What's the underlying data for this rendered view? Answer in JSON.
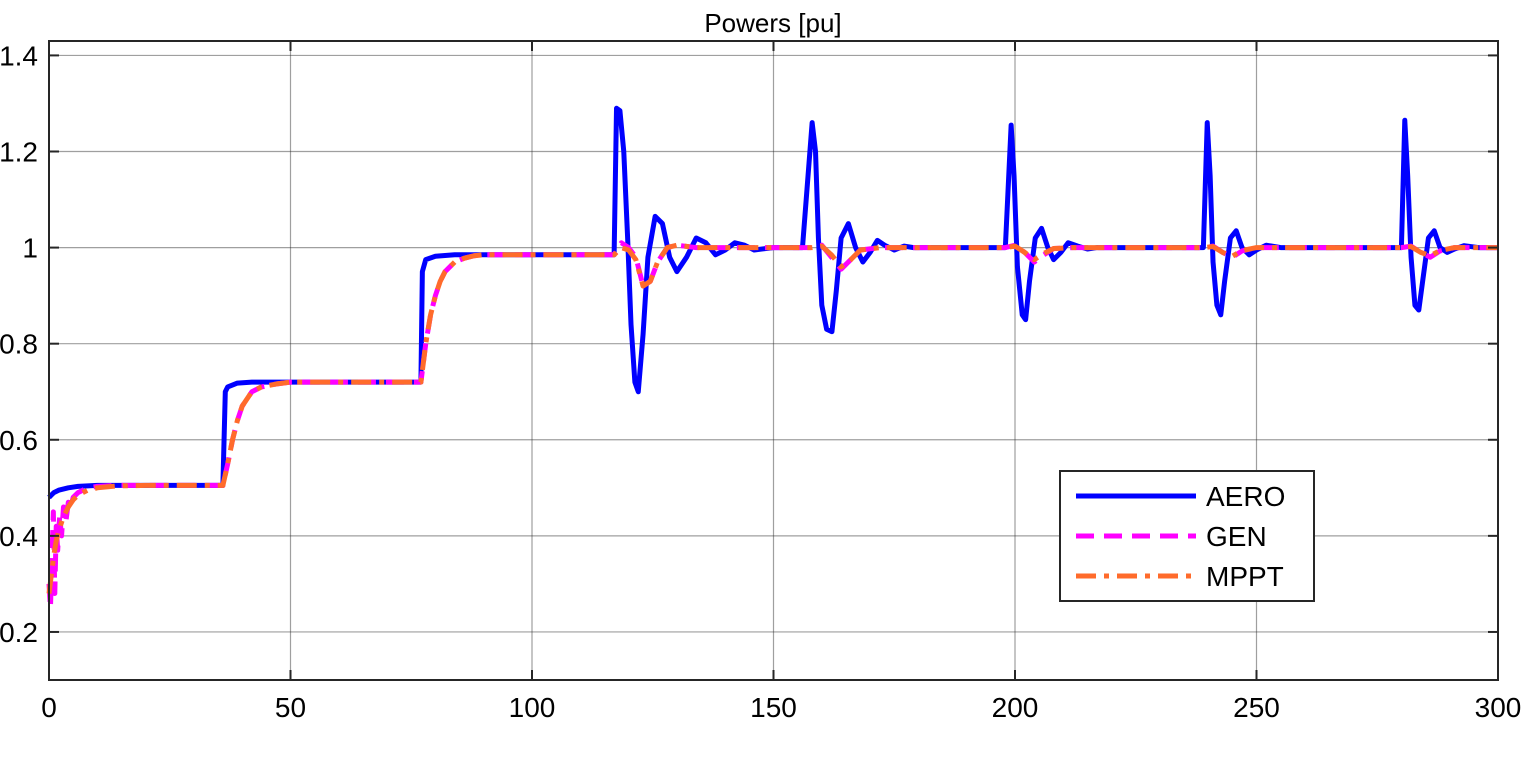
{
  "chart_data": {
    "type": "line",
    "title": "Powers [pu]",
    "xlabel": "",
    "ylabel": "",
    "xlim": [
      0,
      300
    ],
    "ylim": [
      0.1,
      1.43
    ],
    "xticks": [
      0,
      50,
      100,
      150,
      200,
      250,
      300
    ],
    "xtick_labels": [
      "0",
      "50",
      "100",
      "150",
      "200",
      "250",
      "300"
    ],
    "yticks": [
      0.2,
      0.4,
      0.6,
      0.8,
      1.0,
      1.2,
      1.4
    ],
    "ytick_labels": [
      "0.2",
      "0.4",
      "0.6",
      "0.8",
      "1",
      "1.2",
      "1.4"
    ],
    "grid": true,
    "legend_position": "bottom-right",
    "series": [
      {
        "name": "AERO",
        "color": "#0000ff",
        "style": "solid",
        "x": [
          0,
          0.5,
          1,
          2,
          4,
          6,
          10,
          20,
          36,
          36.5,
          37,
          39,
          42,
          50,
          60,
          77,
          77.3,
          78,
          80,
          84,
          90,
          100,
          117,
          117.5,
          118.2,
          119,
          119.8,
          120.5,
          121.3,
          122,
          123,
          124,
          125.5,
          127,
          128.5,
          130,
          132,
          134,
          136,
          138,
          140,
          142,
          144,
          146,
          150,
          156,
          158,
          158.7,
          159.3,
          160,
          161,
          162.1,
          163,
          164,
          165.5,
          167,
          168.5,
          170,
          171.5,
          173,
          175,
          177,
          179,
          185,
          198,
          199.2,
          199.8,
          200.5,
          201.5,
          202.2,
          203,
          204.2,
          205.5,
          206.8,
          208,
          209.5,
          211,
          213,
          215,
          217,
          220,
          230,
          239,
          239.8,
          240.4,
          241,
          241.8,
          242.6,
          243.4,
          244.6,
          245.8,
          247,
          248.5,
          250,
          252,
          255,
          270,
          280,
          280.7,
          281.3,
          282,
          282.8,
          283.6,
          284.4,
          285.6,
          286.8,
          288,
          289.5,
          291,
          293,
          296,
          300
        ],
        "values": [
          0.48,
          0.485,
          0.49,
          0.495,
          0.5,
          0.503,
          0.505,
          0.505,
          0.505,
          0.7,
          0.71,
          0.718,
          0.72,
          0.72,
          0.72,
          0.72,
          0.95,
          0.975,
          0.982,
          0.985,
          0.985,
          0.985,
          0.985,
          1.29,
          1.285,
          1.2,
          1.02,
          0.84,
          0.72,
          0.7,
          0.82,
          0.98,
          1.065,
          1.05,
          0.98,
          0.95,
          0.98,
          1.02,
          1.01,
          0.985,
          0.995,
          1.01,
          1.005,
          0.995,
          1.0,
          1.0,
          1.26,
          1.2,
          1.02,
          0.88,
          0.83,
          0.825,
          0.91,
          1.02,
          1.05,
          1.0,
          0.97,
          0.99,
          1.015,
          1.005,
          0.995,
          1.003,
          1.0,
          1.0,
          1.0,
          1.255,
          1.15,
          0.96,
          0.86,
          0.85,
          0.93,
          1.02,
          1.04,
          1.0,
          0.975,
          0.99,
          1.01,
          1.003,
          0.997,
          1.0,
          1.0,
          1.0,
          1.0,
          1.26,
          1.15,
          0.97,
          0.88,
          0.86,
          0.93,
          1.02,
          1.035,
          1.0,
          0.985,
          0.995,
          1.005,
          1.0,
          1.0,
          1.0,
          1.265,
          1.15,
          0.98,
          0.88,
          0.87,
          0.93,
          1.02,
          1.035,
          1.0,
          0.99,
          0.997,
          1.004,
          1.0,
          1.0
        ]
      },
      {
        "name": "GEN",
        "color": "#ff00ff",
        "style": "dashed",
        "x": [
          0,
          0.3,
          0.6,
          0.9,
          1.2,
          1.5,
          1.8,
          2.2,
          2.6,
          3,
          3.5,
          4,
          4.5,
          5,
          6,
          7,
          8,
          10,
          14,
          20,
          36,
          37,
          38,
          39,
          40,
          42,
          44,
          47,
          50,
          55,
          60,
          77,
          78,
          79,
          80,
          81,
          82,
          84,
          86,
          88,
          90,
          100,
          117,
          118.5,
          120,
          121.5,
          123,
          124.5,
          126,
          128,
          130,
          134,
          140,
          150,
          158,
          160,
          162,
          164,
          166,
          168,
          172,
          180,
          198,
          200,
          202,
          204,
          206,
          208,
          212,
          220,
          239,
          241,
          243,
          245,
          247,
          250,
          260,
          280,
          282,
          284,
          286,
          288,
          291,
          300
        ],
        "values": [
          0.3,
          0.25,
          0.35,
          0.45,
          0.28,
          0.42,
          0.37,
          0.44,
          0.4,
          0.46,
          0.43,
          0.47,
          0.46,
          0.48,
          0.49,
          0.495,
          0.5,
          0.503,
          0.505,
          0.505,
          0.505,
          0.55,
          0.6,
          0.64,
          0.67,
          0.7,
          0.71,
          0.716,
          0.72,
          0.72,
          0.72,
          0.72,
          0.8,
          0.86,
          0.9,
          0.93,
          0.95,
          0.97,
          0.978,
          0.983,
          0.985,
          0.985,
          0.985,
          1.01,
          1.0,
          0.98,
          0.92,
          0.93,
          0.97,
          1.0,
          1.005,
          1.0,
          1.0,
          1.0,
          1.0,
          1.005,
          0.98,
          0.955,
          0.975,
          0.995,
          1.0,
          1.0,
          1.0,
          1.005,
          0.99,
          0.97,
          0.985,
          0.998,
          1.0,
          1.0,
          1.0,
          1.003,
          0.99,
          0.98,
          0.993,
          1.0,
          1.0,
          1.0,
          1.003,
          0.99,
          0.98,
          0.993,
          1.0,
          1.0
        ]
      },
      {
        "name": "MPPT",
        "color": "#ff6b2b",
        "style": "dashdot",
        "x": [
          0,
          0.5,
          1,
          1.5,
          2,
          3,
          4,
          5,
          6,
          8,
          10,
          14,
          20,
          36,
          37,
          38,
          39,
          40,
          42,
          44,
          47,
          50,
          55,
          60,
          77,
          78,
          79,
          80,
          81,
          82,
          84,
          86,
          88,
          90,
          100,
          117,
          118.5,
          120,
          121.5,
          123,
          124.5,
          126,
          128,
          130,
          134,
          140,
          150,
          158,
          160,
          162,
          164,
          166,
          168,
          172,
          180,
          198,
          200,
          202,
          204,
          206,
          208,
          212,
          220,
          239,
          241,
          243,
          245,
          247,
          250,
          260,
          280,
          282,
          284,
          286,
          288,
          291,
          300
        ],
        "values": [
          0.28,
          0.32,
          0.36,
          0.39,
          0.41,
          0.44,
          0.46,
          0.475,
          0.485,
          0.495,
          0.5,
          0.504,
          0.505,
          0.505,
          0.55,
          0.6,
          0.64,
          0.67,
          0.7,
          0.71,
          0.716,
          0.72,
          0.72,
          0.72,
          0.72,
          0.8,
          0.86,
          0.9,
          0.93,
          0.95,
          0.97,
          0.978,
          0.983,
          0.985,
          0.985,
          0.985,
          1.0,
          0.995,
          0.975,
          0.92,
          0.93,
          0.97,
          1.0,
          1.005,
          1.0,
          1.0,
          1.0,
          1.0,
          1.003,
          0.985,
          0.96,
          0.975,
          0.995,
          1.0,
          1.0,
          1.0,
          1.003,
          0.99,
          0.975,
          0.988,
          0.998,
          1.0,
          1.0,
          1.0,
          1.002,
          0.99,
          0.982,
          0.994,
          1.0,
          1.0,
          1.0,
          1.002,
          0.99,
          0.983,
          0.994,
          1.0,
          1.0
        ]
      }
    ]
  }
}
